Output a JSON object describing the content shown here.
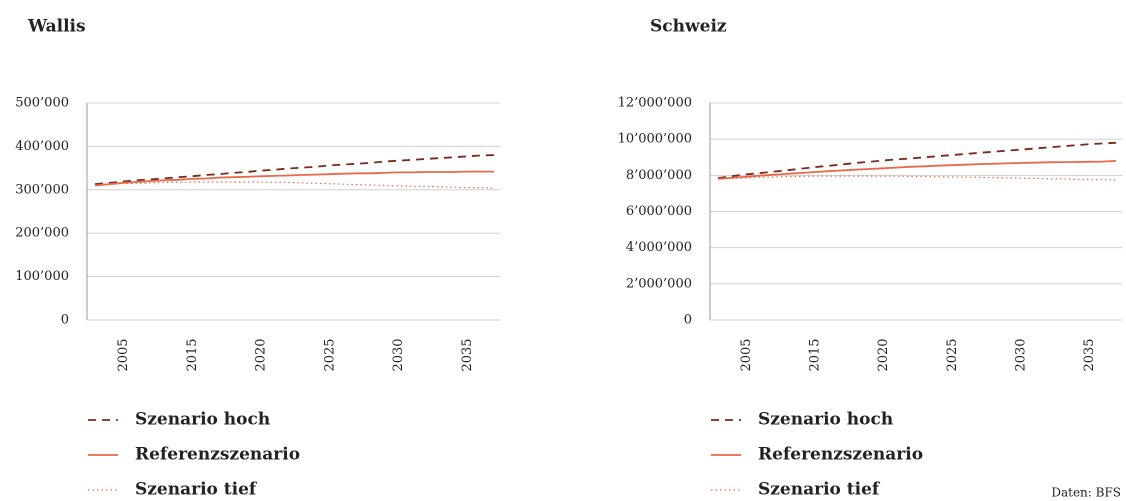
{
  "chart_data": [
    {
      "type": "line",
      "title": "Wallis",
      "categories": [
        null,
        null,
        "2005",
        null,
        null,
        null,
        null,
        "2015",
        null,
        null,
        null,
        null,
        "2020",
        null,
        null,
        null,
        null,
        "2025",
        null,
        null,
        null,
        null,
        "2030",
        null,
        null,
        null,
        null,
        "2035",
        null,
        null
      ],
      "ylim": [
        0,
        500000
      ],
      "yticks": [
        {
          "value": 0,
          "label": "0"
        },
        {
          "value": 100000,
          "label": "100’000"
        },
        {
          "value": 200000,
          "label": "200’000"
        },
        {
          "value": 300000,
          "label": "300’000"
        },
        {
          "value": 400000,
          "label": "400’000"
        },
        {
          "value": 500000,
          "label": "500’000"
        }
      ],
      "grid": true,
      "series": [
        {
          "name": "Szenario hoch",
          "color": "#7a2a1a",
          "style": "dashed",
          "values": [
            313000,
            316000,
            319000,
            322000,
            324000,
            326000,
            329000,
            331000,
            334000,
            336000,
            339000,
            341000,
            344000,
            346000,
            349000,
            351000,
            353000,
            356000,
            358000,
            360000,
            362000,
            365000,
            367000,
            369000,
            371000,
            373000,
            375000,
            377000,
            379000,
            380000
          ]
        },
        {
          "name": "Referenzszenario",
          "color": "#e8694a",
          "style": "solid",
          "values": [
            310000,
            313000,
            316000,
            318000,
            320000,
            322000,
            323000,
            325000,
            326000,
            328000,
            329000,
            330000,
            331000,
            332000,
            333000,
            334000,
            335000,
            336000,
            337000,
            338000,
            338000,
            339000,
            340000,
            340000,
            341000,
            341000,
            341000,
            342000,
            342000,
            342000
          ]
        },
        {
          "name": "Szenario tief",
          "color": "#e8694a",
          "style": "dotted",
          "values": [
            310000,
            312000,
            314000,
            315000,
            316000,
            317000,
            317000,
            318000,
            318000,
            318000,
            318000,
            318000,
            318000,
            317000,
            317000,
            316000,
            315000,
            314000,
            313000,
            312000,
            311000,
            310000,
            309000,
            308000,
            308000,
            307000,
            306000,
            305000,
            305000,
            304000
          ]
        }
      ]
    },
    {
      "type": "line",
      "title": "Schweiz",
      "categories": [
        null,
        null,
        "2005",
        null,
        null,
        null,
        null,
        "2015",
        null,
        null,
        null,
        null,
        "2020",
        null,
        null,
        null,
        null,
        "2025",
        null,
        null,
        null,
        null,
        "2030",
        null,
        null,
        null,
        null,
        "2035",
        null,
        null
      ],
      "ylim": [
        0,
        12000000
      ],
      "yticks": [
        {
          "value": 0,
          "label": "0"
        },
        {
          "value": 2000000,
          "label": "2’000’000"
        },
        {
          "value": 4000000,
          "label": "4’000’000"
        },
        {
          "value": 6000000,
          "label": "6’000’000"
        },
        {
          "value": 8000000,
          "label": "8’000’000"
        },
        {
          "value": 10000000,
          "label": "10’000’000"
        },
        {
          "value": 12000000,
          "label": "12’000’000"
        }
      ],
      "grid": true,
      "series": [
        {
          "name": "Szenario hoch",
          "color": "#7a2a1a",
          "style": "dashed",
          "values": [
            7850000,
            7950000,
            8050000,
            8120000,
            8200000,
            8280000,
            8360000,
            8450000,
            8520000,
            8600000,
            8680000,
            8750000,
            8820000,
            8880000,
            8930000,
            9000000,
            9060000,
            9120000,
            9180000,
            9240000,
            9300000,
            9360000,
            9420000,
            9480000,
            9540000,
            9600000,
            9660000,
            9720000,
            9760000,
            9800000
          ]
        },
        {
          "name": "Referenzszenario",
          "color": "#e8694a",
          "style": "solid",
          "values": [
            7800000,
            7860000,
            7920000,
            7980000,
            8030000,
            8080000,
            8130000,
            8180000,
            8230000,
            8270000,
            8310000,
            8350000,
            8390000,
            8430000,
            8470000,
            8500000,
            8530000,
            8560000,
            8590000,
            8620000,
            8640000,
            8660000,
            8680000,
            8700000,
            8720000,
            8730000,
            8740000,
            8750000,
            8760000,
            8800000
          ]
        },
        {
          "name": "Szenario tief",
          "color": "#e8694a",
          "style": "dotted",
          "values": [
            7800000,
            7830000,
            7860000,
            7890000,
            7910000,
            7930000,
            7940000,
            7950000,
            7960000,
            7960000,
            7960000,
            7960000,
            7950000,
            7950000,
            7940000,
            7930000,
            7920000,
            7910000,
            7900000,
            7890000,
            7870000,
            7860000,
            7840000,
            7830000,
            7810000,
            7800000,
            7780000,
            7770000,
            7760000,
            7750000
          ]
        }
      ]
    }
  ],
  "source": "Daten: BFS"
}
